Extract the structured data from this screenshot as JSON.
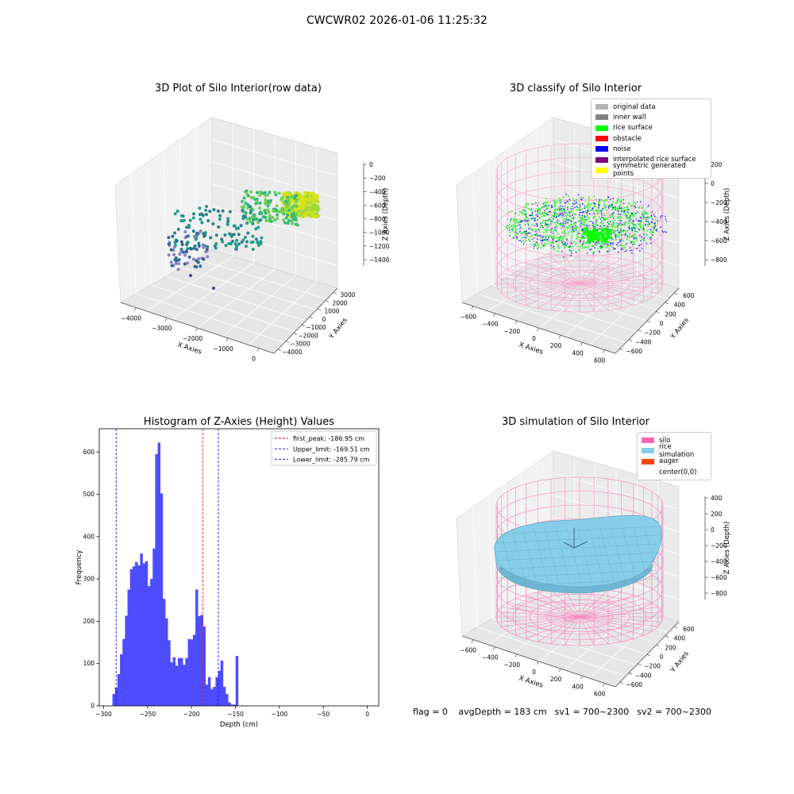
{
  "suptitle": "CWCWR02 2026-01-06 11:25:32",
  "footer": {
    "flag": "flag = 0",
    "avg_depth": "avgDepth = 183 cm",
    "sv1": "sv1 = 700~2300",
    "sv2": "sv2 = 700~2300"
  },
  "panels": {
    "raw": {
      "title": "3D Plot of Silo Interior(row data)",
      "xlabel": "X Axies",
      "ylabel": "Y Axies",
      "zlabel": "Z Axies (Depth)",
      "xticks": [
        "−4000",
        "−3000",
        "−2000",
        "−1000",
        "0"
      ],
      "yticks": [
        "3000",
        "2000",
        "1000",
        "0",
        "−1000",
        "−2000",
        "−3000",
        "−4000"
      ],
      "zticks": [
        "0",
        "−200",
        "−400",
        "−600",
        "−800",
        "−1000",
        "−1200",
        "−1400"
      ]
    },
    "classify": {
      "title": "3D classify of Silo Interior",
      "xlabel": "X Axies",
      "ylabel": "Y Axies",
      "zlabel": "Z Axies (Depth)",
      "xticks": [
        "−600",
        "−400",
        "−200",
        "0",
        "200",
        "400",
        "600"
      ],
      "yticks": [
        "600",
        "400",
        "200",
        "0",
        "−200",
        "−400",
        "−600"
      ],
      "zticks": [
        "200",
        "0",
        "−200",
        "−400",
        "−600",
        "−800"
      ],
      "legend": [
        {
          "label": "original data",
          "color": "#b3b3b3"
        },
        {
          "label": "inner wall",
          "color": "#808080"
        },
        {
          "label": "rice surface",
          "color": "#00ff00"
        },
        {
          "label": "obstacle",
          "color": "#ff0000"
        },
        {
          "label": "noise",
          "color": "#0000ff"
        },
        {
          "label": "interpolated rice surface",
          "color": "#800080"
        },
        {
          "label": "symmetric generated points",
          "color": "#ffff00"
        }
      ]
    },
    "simulation": {
      "title": "3D simulation of Silo Interior",
      "xlabel": "X Axies",
      "ylabel": "Y Axies",
      "zlabel": "Z Axies (Depth)",
      "xticks": [
        "−600",
        "−400",
        "−200",
        "0",
        "200",
        "400",
        "600"
      ],
      "yticks": [
        "600",
        "400",
        "200",
        "0",
        "−200",
        "−400",
        "−600"
      ],
      "zticks": [
        "400",
        "200",
        "0",
        "−200",
        "−400",
        "−600",
        "−800"
      ],
      "legend": [
        {
          "label": "silo",
          "color": "#ff69b4"
        },
        {
          "label": "rice simulation",
          "color": "#87ceeb"
        },
        {
          "label": "auger",
          "color": "#ff4500"
        },
        {
          "label": "center(0,0)",
          "color": ""
        }
      ]
    }
  },
  "chart_data": {
    "type": "bar",
    "title": "Histogram of Z-Axies (Height) Values",
    "xlabel": "Depth (cm)",
    "ylabel": "Frequency",
    "xlim": [
      -305,
      13
    ],
    "ylim": [
      0,
      655
    ],
    "xticks": [
      -300,
      -250,
      -200,
      -150,
      -100,
      -50,
      0
    ],
    "xtick_labels": [
      "−300",
      "−250",
      "−200",
      "−150",
      "−100",
      "−50",
      "0"
    ],
    "yticks": [
      0,
      100,
      200,
      300,
      400,
      500,
      600
    ],
    "bar_color": "#4d4dff",
    "bin_start": -290,
    "bin_width": 2.86,
    "values": [
      28,
      43,
      75,
      122,
      158,
      213,
      275,
      323,
      330,
      340,
      332,
      360,
      337,
      342,
      283,
      300,
      372,
      595,
      622,
      502,
      253,
      207,
      155,
      103,
      115,
      95,
      113,
      113,
      97,
      113,
      158,
      157,
      168,
      275,
      212,
      215,
      188,
      50,
      68,
      40,
      45,
      68,
      83,
      107,
      45,
      28,
      8,
      3,
      3,
      118
    ],
    "lines": [
      {
        "name": "first_peak: -186.95 cm",
        "x": -186.95,
        "color": "#ff0000"
      },
      {
        "name": "Upper_limit: -169.51 cm",
        "x": -169.51,
        "color": "#0000ff"
      },
      {
        "name": "Lower_limit: -285.79 cm",
        "x": -285.79,
        "color": "#0000ff"
      }
    ],
    "legend_position": "upper right",
    "grid": false
  }
}
